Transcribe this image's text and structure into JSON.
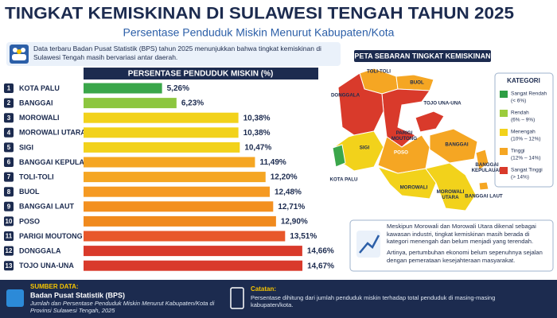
{
  "header": {
    "title": "TINGKAT KEMISKINAN DI SULAWESI TENGAH TAHUN 2025",
    "subtitle": "Persentase Penduduk Miskin Menurut Kabupaten/Kota"
  },
  "intro": "Data terbaru Badan Pusat Statistik (BPS) tahun 2025 menunjukkan bahwa tingkat kemiskinan di Sulawesi Tengah masih bervariasi antar daerah.",
  "chart_data": {
    "type": "bar",
    "orientation": "horizontal",
    "title": "PERSENTASE PENDUDUK MISKIN (%)",
    "ranks": [
      1,
      2,
      3,
      4,
      5,
      6,
      7,
      8,
      9,
      10,
      11,
      12,
      13
    ],
    "categories": [
      "KOTA PALU",
      "BANGGAI",
      "MOROWALI",
      "MOROWALI UTARA",
      "SIGI",
      "BANGGAI KEPULAUAN",
      "TOLI-TOLI",
      "BUOL",
      "BANGGAI LAUT",
      "POSO",
      "PARIGI MOUTONG",
      "DONGGALA",
      "TOJO UNA-UNA"
    ],
    "values": [
      5.26,
      6.23,
      10.38,
      10.38,
      10.47,
      11.49,
      12.2,
      12.48,
      12.71,
      12.9,
      13.51,
      14.66,
      14.67
    ],
    "value_labels": [
      "5,26%",
      "6,23%",
      "10,38%",
      "10,38%",
      "10,47%",
      "11,49%",
      "12,20%",
      "12,48%",
      "12,71%",
      "12,90%",
      "13,51%",
      "14,66%",
      "14,67%"
    ],
    "colors": [
      "#3aa64a",
      "#8cc63f",
      "#f2d21b",
      "#f2d21b",
      "#f2d21b",
      "#f5a623",
      "#f5a623",
      "#f59a23",
      "#f39020",
      "#f08a1e",
      "#e8572a",
      "#d93a2b",
      "#d93a2b"
    ],
    "xlim": [
      0,
      16
    ]
  },
  "map": {
    "title": "PETA SEBARAN TINGKAT KEMISKINAN",
    "labels": [
      "TOLI-TOLI",
      "BUOL",
      "TOJO UNA-UNA",
      "DONGGALA",
      "PARIGI MOUTONG",
      "SIGI",
      "POSO",
      "BANGGAI",
      "BANGGAI KEPULAUAN",
      "MOROWALI",
      "MOROWALI UTARA",
      "KOTA PALU",
      "BANGGAI LAUT"
    ],
    "legend": {
      "title": "KATEGORI",
      "items": [
        {
          "name": "Sangat Rendah",
          "range": "(< 6%)",
          "color": "#2e9e44"
        },
        {
          "name": "Rendah",
          "range": "(6% – 9%)",
          "color": "#9ccc3c"
        },
        {
          "name": "Menengah",
          "range": "(10% – 12%)",
          "color": "#f2d21b"
        },
        {
          "name": "Tinggi",
          "range": "(12% – 14%)",
          "color": "#f5a623"
        },
        {
          "name": "Sangat Tinggi",
          "range": "(> 14%)",
          "color": "#d93a2b"
        }
      ]
    }
  },
  "note": [
    "Meskipun Morowali dan Morowali Utara dikenal sebagai kawasan industri, tingkat kemiskinan masih berada di kategori menengah dan belum menjadi yang terendah.",
    "Artinya, pertumbuhan ekonomi belum sepenuhnya sejalan dengan pemerataan kesejahteraan masyarakat."
  ],
  "footer": {
    "source_label": "SUMBER DATA:",
    "source_name": "Badan Pusat Statistik (BPS)",
    "source_detail": "Jumlah dan Persentase Penduduk Miskin Menurut Kabupaten/Kota di Provinsi Sulawesi Tengah, 2025",
    "note_label": "Catatan:",
    "note_text": "Persentase dihitung dari jumlah penduduk miskin terhadap total penduduk di masing-masing kabupaten/kota."
  }
}
